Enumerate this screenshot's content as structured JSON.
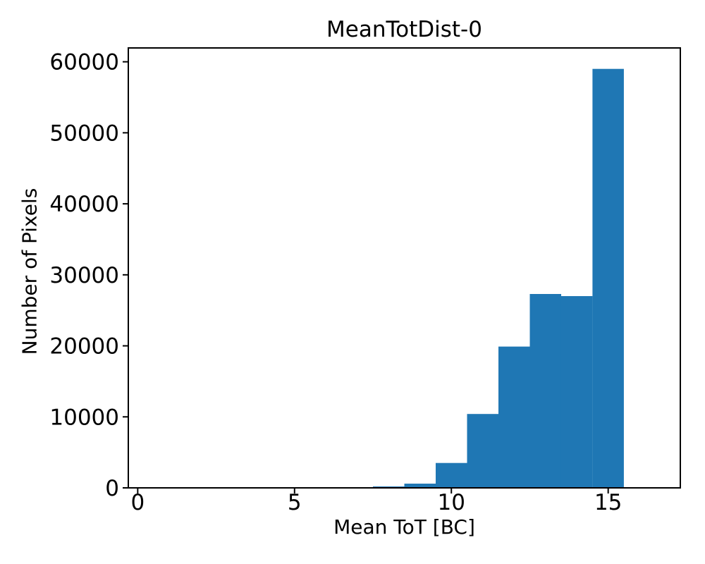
{
  "chart_data": {
    "type": "bar",
    "variant": "histogram",
    "title": "MeanTotDist-0",
    "xlabel": "Mean ToT [BC]",
    "ylabel": "Number of Pixels",
    "bin_edges": [
      7.5,
      8.5,
      9.5,
      10.5,
      11.5,
      12.5,
      13.5,
      14.5,
      15.5
    ],
    "counts": [
      200,
      600,
      3500,
      10400,
      19900,
      27300,
      27000,
      59000
    ],
    "xticks": [
      0,
      5,
      10,
      15
    ],
    "yticks": [
      0,
      10000,
      20000,
      30000,
      40000,
      50000,
      60000
    ],
    "xlim": [
      -0.3,
      17.3
    ],
    "ylim": [
      0,
      61950
    ],
    "grid": false,
    "legend_position": "none",
    "bar_color": "#1f77b4",
    "axis_color": "#000000",
    "background_color": "#ffffff"
  }
}
